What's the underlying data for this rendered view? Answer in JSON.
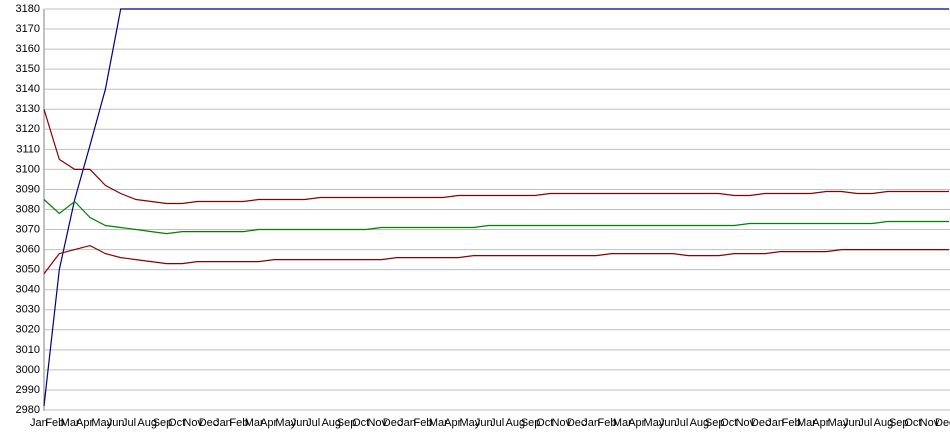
{
  "chart_data": {
    "type": "line",
    "categories": [
      "Jan",
      "Feb",
      "Mar",
      "Apr",
      "May",
      "Jun",
      "Jul",
      "Aug",
      "Sep",
      "Oct",
      "Nov",
      "Dec",
      "Jan",
      "Feb",
      "Mar",
      "Apr",
      "May",
      "Jun",
      "Jul",
      "Aug",
      "Sep",
      "Oct",
      "Nov",
      "Dec",
      "Jan",
      "Feb",
      "Mar",
      "Apr",
      "May",
      "Jun",
      "Jul",
      "Aug",
      "Sep",
      "Oct",
      "Nov",
      "Dec",
      "Jan",
      "Feb",
      "Mar",
      "Apr",
      "May",
      "Jun",
      "Jul",
      "Aug",
      "Sep",
      "Oct",
      "Nov",
      "Dec",
      "Jan",
      "Feb",
      "Mar",
      "Apr",
      "May",
      "Jun",
      "Jul",
      "Aug",
      "Sep",
      "Oct",
      "Nov",
      "Dec"
    ],
    "series": [
      {
        "color": "#000080",
        "values": [
          2982,
          3050,
          3085,
          3112,
          3140,
          3180,
          3180,
          3180,
          3180,
          3180,
          3180,
          3180,
          3180,
          3180,
          3180,
          3180,
          3180,
          3180,
          3180,
          3180,
          3180,
          3180,
          3180,
          3180,
          3180,
          3180,
          3180,
          3180,
          3180,
          3180,
          3180,
          3180,
          3180,
          3180,
          3180,
          3180,
          3180,
          3180,
          3180,
          3180,
          3180,
          3180,
          3180,
          3180,
          3180,
          3180,
          3180,
          3180,
          3180,
          3180,
          3180,
          3180,
          3180,
          3180,
          3180,
          3180,
          3180,
          3180,
          3180,
          3180
        ]
      },
      {
        "color": "#8b0000",
        "values": [
          3130,
          3105,
          3100,
          3100,
          3092,
          3088,
          3085,
          3084,
          3083,
          3083,
          3084,
          3084,
          3084,
          3084,
          3085,
          3085,
          3085,
          3085,
          3086,
          3086,
          3086,
          3086,
          3086,
          3086,
          3086,
          3086,
          3086,
          3087,
          3087,
          3087,
          3087,
          3087,
          3087,
          3088,
          3088,
          3088,
          3088,
          3088,
          3088,
          3088,
          3088,
          3088,
          3088,
          3088,
          3088,
          3087,
          3087,
          3088,
          3088,
          3088,
          3088,
          3089,
          3089,
          3088,
          3088,
          3089,
          3089,
          3089,
          3089,
          3089
        ]
      },
      {
        "color": "#008000",
        "values": [
          3085,
          3078,
          3084,
          3076,
          3072,
          3071,
          3070,
          3069,
          3068,
          3069,
          3069,
          3069,
          3069,
          3069,
          3070,
          3070,
          3070,
          3070,
          3070,
          3070,
          3070,
          3070,
          3071,
          3071,
          3071,
          3071,
          3071,
          3071,
          3071,
          3072,
          3072,
          3072,
          3072,
          3072,
          3072,
          3072,
          3072,
          3072,
          3072,
          3072,
          3072,
          3072,
          3072,
          3072,
          3072,
          3072,
          3073,
          3073,
          3073,
          3073,
          3073,
          3073,
          3073,
          3073,
          3073,
          3074,
          3074,
          3074,
          3074,
          3074
        ]
      },
      {
        "color": "#8b0000",
        "values": [
          3048,
          3058,
          3060,
          3062,
          3058,
          3056,
          3055,
          3054,
          3053,
          3053,
          3054,
          3054,
          3054,
          3054,
          3054,
          3055,
          3055,
          3055,
          3055,
          3055,
          3055,
          3055,
          3055,
          3056,
          3056,
          3056,
          3056,
          3056,
          3057,
          3057,
          3057,
          3057,
          3057,
          3057,
          3057,
          3057,
          3057,
          3058,
          3058,
          3058,
          3058,
          3058,
          3057,
          3057,
          3057,
          3058,
          3058,
          3058,
          3059,
          3059,
          3059,
          3059,
          3060,
          3060,
          3060,
          3060,
          3060,
          3060,
          3060,
          3060
        ]
      }
    ],
    "ylim": [
      2980,
      3180
    ],
    "yticks": [
      2980,
      2990,
      3000,
      3010,
      3020,
      3030,
      3040,
      3050,
      3060,
      3070,
      3080,
      3090,
      3100,
      3110,
      3120,
      3130,
      3140,
      3150,
      3160,
      3170,
      3180
    ],
    "grid": true
  }
}
